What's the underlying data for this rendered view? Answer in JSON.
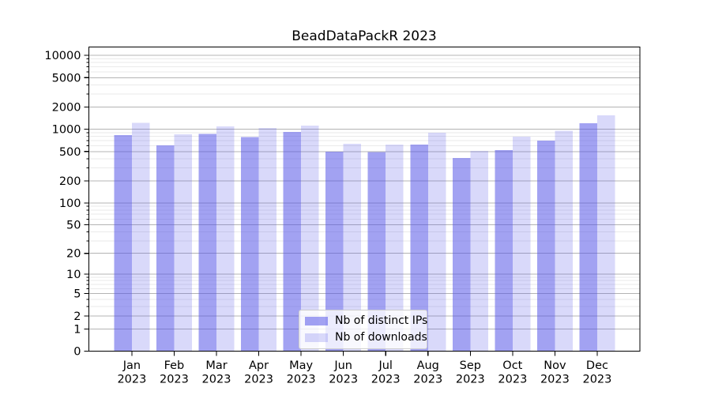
{
  "chart_data": {
    "type": "bar",
    "title": "BeadDataPackR 2023",
    "categories": [
      "Jan 2023",
      "Feb 2023",
      "Mar 2023",
      "Apr 2023",
      "May 2023",
      "Jun 2023",
      "Jul 2023",
      "Aug 2023",
      "Sep 2023",
      "Oct 2023",
      "Nov 2023",
      "Dec 2023"
    ],
    "series": [
      {
        "name": "Nb of distinct IPs",
        "color": "rgba(80,80,230,0.53)",
        "values": [
          832,
          604,
          867,
          780,
          920,
          495,
          492,
          622,
          410,
          525,
          700,
          1215
        ]
      },
      {
        "name": "Nb of downloads",
        "color": "rgba(80,80,230,0.22)",
        "values": [
          1220,
          858,
          1100,
          1040,
          1115,
          635,
          618,
          895,
          508,
          797,
          955,
          1550
        ]
      }
    ],
    "y_scale": "log1p",
    "y_ticks": [
      10000,
      5000,
      2000,
      1000,
      500,
      200,
      100,
      50,
      20,
      10,
      5,
      2,
      1,
      0
    ],
    "ylim": [
      0,
      13000
    ],
    "xlabel": "",
    "ylabel": "",
    "grid": "horizontal",
    "legend_position": "lower center",
    "colors": {
      "grid_major": "#b4b4b4",
      "grid_minor": "#eaeaea",
      "spine": "#000000",
      "background": "#ffffff"
    }
  }
}
